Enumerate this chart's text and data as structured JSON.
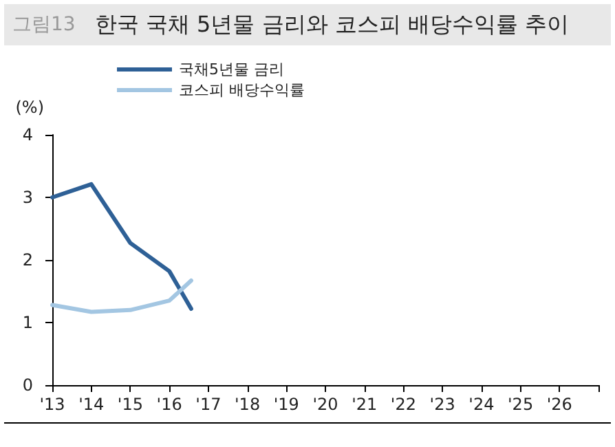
{
  "chart_data": {
    "type": "line",
    "title": "한국 국채 5년물 금리와 코스피 배당수익률 추이",
    "annotations": [
      "그림13"
    ],
    "ylabel": "(%)",
    "series": [
      {
        "name": "국채5년물 금리",
        "color": "#2e6096",
        "x": [
          2013,
          2014,
          2015,
          2016,
          2016.56
        ],
        "values": [
          3.0,
          3.21,
          2.27,
          1.82,
          1.22
        ]
      },
      {
        "name": "코스피 배당수익률",
        "color": "#a3c6e2",
        "x": [
          2013,
          2014,
          2015,
          2016,
          2016.56
        ],
        "values": [
          1.28,
          1.17,
          1.2,
          1.35,
          1.67
        ]
      }
    ],
    "xlim": [
      2013,
      2027
    ],
    "xticks": [
      {
        "value": 2013,
        "label": "'13"
      },
      {
        "value": 2014,
        "label": "'14"
      },
      {
        "value": 2015,
        "label": "'15"
      },
      {
        "value": 2016,
        "label": "'16"
      },
      {
        "value": 2017,
        "label": "'17"
      },
      {
        "value": 2018,
        "label": "'18"
      },
      {
        "value": 2019,
        "label": "'19"
      },
      {
        "value": 2020,
        "label": "'20"
      },
      {
        "value": 2021,
        "label": "'21"
      },
      {
        "value": 2022,
        "label": "'22"
      },
      {
        "value": 2023,
        "label": "'23"
      },
      {
        "value": 2024,
        "label": "'24"
      },
      {
        "value": 2025,
        "label": "'25"
      },
      {
        "value": 2026,
        "label": "'26"
      },
      {
        "value": 2027,
        "label": null
      }
    ],
    "ylim": [
      0,
      4
    ],
    "yticks": [
      0,
      1,
      2,
      3,
      4
    ],
    "grid": false,
    "legend": "top left",
    "marker": "none",
    "line_style": "solid"
  }
}
